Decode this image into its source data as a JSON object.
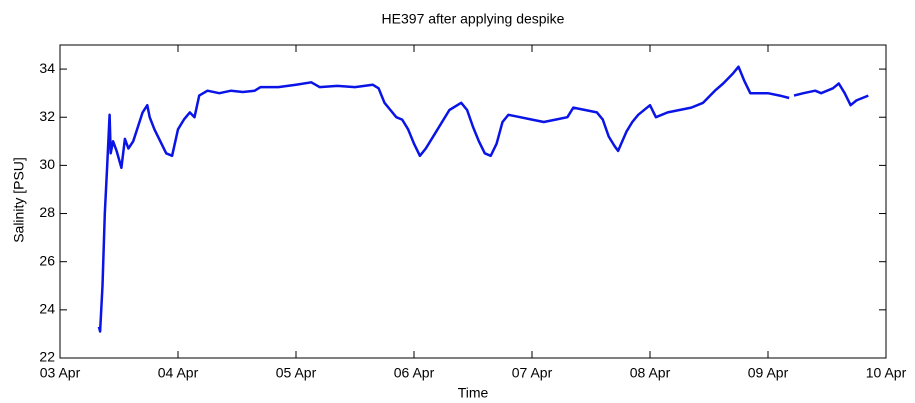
{
  "chart_data": {
    "type": "line",
    "title": "HE397 after applying despike",
    "x_label": "Time",
    "y_label": "Salinity [PSU]",
    "x": [
      3.33,
      3.34,
      3.36,
      3.38,
      3.4,
      3.42,
      3.43,
      3.45,
      3.48,
      3.52,
      3.55,
      3.58,
      3.62,
      3.66,
      3.7,
      3.74,
      3.76,
      3.8,
      3.85,
      3.9,
      3.95,
      4.0,
      4.05,
      4.1,
      4.14,
      4.18,
      4.25,
      4.35,
      4.45,
      4.55,
      4.65,
      4.7,
      4.85,
      5.0,
      5.13,
      5.2,
      5.35,
      5.5,
      5.65,
      5.7,
      5.75,
      5.8,
      5.85,
      5.9,
      5.95,
      6.0,
      6.05,
      6.1,
      6.2,
      6.3,
      6.4,
      6.45,
      6.5,
      6.55,
      6.6,
      6.65,
      6.7,
      6.75,
      6.8,
      6.9,
      7.0,
      7.1,
      7.2,
      7.3,
      7.35,
      7.45,
      7.55,
      7.6,
      7.65,
      7.7,
      7.73,
      7.8,
      7.85,
      7.9,
      8.0,
      8.05,
      8.15,
      8.25,
      8.35,
      8.45,
      8.55,
      8.62,
      8.7,
      8.75,
      8.8,
      8.85,
      9.0,
      9.1,
      9.18,
      9.2,
      9.22,
      9.3,
      9.4,
      9.45,
      9.55,
      9.6,
      9.65,
      9.7,
      9.75,
      9.85
    ],
    "series": [
      {
        "name": "Salinity",
        "color": "#0a14e6",
        "values": [
          23.3,
          23.1,
          25.0,
          28.0,
          30.0,
          32.1,
          30.5,
          31.0,
          30.6,
          29.9,
          31.1,
          30.7,
          31.0,
          31.6,
          32.2,
          32.5,
          32.0,
          31.5,
          31.0,
          30.5,
          30.4,
          31.5,
          31.9,
          32.2,
          32.0,
          32.9,
          33.1,
          33.0,
          33.1,
          33.05,
          33.1,
          33.25,
          33.25,
          33.35,
          33.45,
          33.25,
          33.3,
          33.25,
          33.35,
          33.2,
          32.6,
          32.3,
          32.0,
          31.9,
          31.5,
          30.9,
          30.4,
          30.7,
          31.5,
          32.3,
          32.6,
          32.3,
          31.6,
          31.0,
          30.5,
          30.4,
          30.9,
          31.8,
          32.1,
          32.0,
          31.9,
          31.8,
          31.9,
          32.0,
          32.4,
          32.3,
          32.2,
          31.9,
          31.2,
          30.8,
          30.6,
          31.4,
          31.8,
          32.1,
          32.5,
          32.0,
          32.2,
          32.3,
          32.4,
          32.6,
          33.1,
          33.4,
          33.8,
          34.1,
          33.5,
          33.0,
          33.0,
          32.9,
          32.8,
          null,
          32.9,
          33.0,
          33.1,
          33.0,
          33.2,
          33.4,
          33.0,
          32.5,
          32.7,
          32.9
        ]
      }
    ],
    "xlim": [
      3,
      10
    ],
    "xticks": [
      {
        "value": 3,
        "label": "03 Apr"
      },
      {
        "value": 4,
        "label": "04 Apr"
      },
      {
        "value": 5,
        "label": "05 Apr"
      },
      {
        "value": 6,
        "label": "06 Apr"
      },
      {
        "value": 7,
        "label": "07 Apr"
      },
      {
        "value": 8,
        "label": "08 Apr"
      },
      {
        "value": 9,
        "label": "09 Apr"
      },
      {
        "value": 10,
        "label": "10 Apr"
      }
    ],
    "ylim": [
      22,
      35
    ],
    "yticks": [
      22,
      24,
      26,
      28,
      30,
      32,
      34
    ],
    "grid": false
  }
}
